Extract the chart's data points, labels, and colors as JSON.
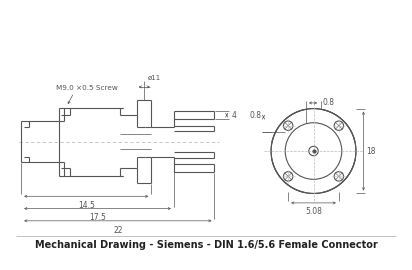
{
  "title": "Mechanical Drawing - Siemens - DIN 1.6/5.6 Female Connector",
  "bg_color": "#ffffff",
  "line_color": "#555555",
  "dim_color": "#555555",
  "centerline_color": "#bbbbbb",
  "title_fontsize": 7.0,
  "dim_fontsize": 5.5,
  "label_fontsize": 5.2
}
